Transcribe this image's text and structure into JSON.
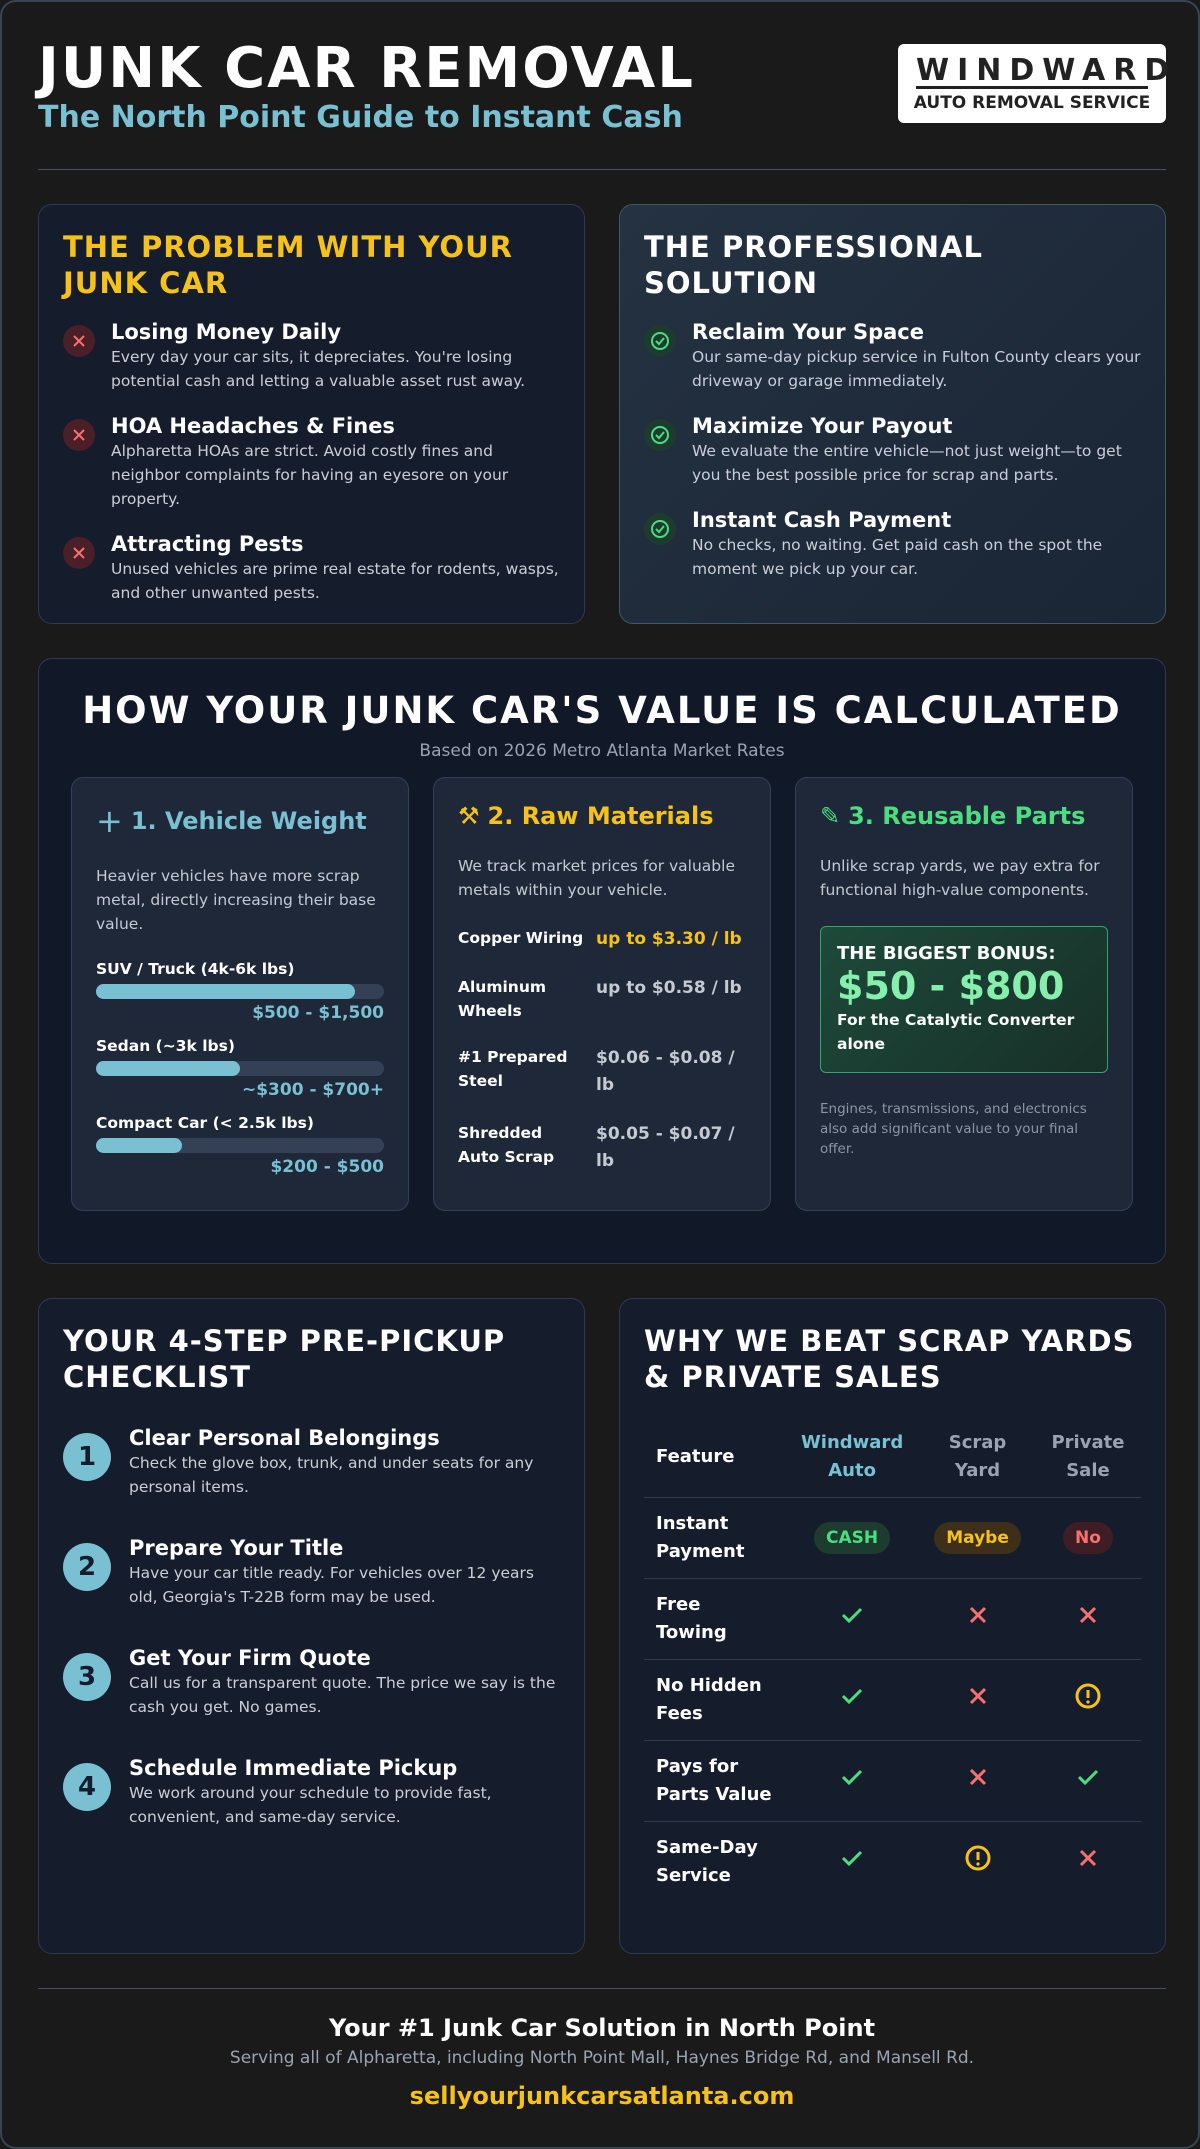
{
  "header": {
    "title": "JUNK CAR REMOVAL",
    "subtitle": "The North Point Guide to Instant Cash",
    "logo": {
      "name": "WINDWARD",
      "tagline": "AUTO REMOVAL SERVICE"
    }
  },
  "problem": {
    "title": "THE PROBLEM WITH YOUR JUNK CAR",
    "items": [
      {
        "title": "Losing Money Daily",
        "text": "Every day your car sits, it depreciates. You're losing potential cash and letting a valuable asset rust away."
      },
      {
        "title": "HOA Headaches & Fines",
        "text": "Alpharetta HOAs are strict. Avoid costly fines and neighbor complaints for having an eyesore on your property."
      },
      {
        "title": "Attracting Pests",
        "text": "Unused vehicles are prime real estate for rodents, wasps, and other unwanted pests."
      }
    ]
  },
  "solution": {
    "title": "THE PROFESSIONAL SOLUTION",
    "items": [
      {
        "title": "Reclaim Your Space",
        "text": "Our same-day pickup service in Fulton County clears your driveway or garage immediately."
      },
      {
        "title": "Maximize Your Payout",
        "text": "We evaluate the entire vehicle—not just weight—to get you the best possible price for scrap and parts."
      },
      {
        "title": "Instant Cash Payment",
        "text": "No checks, no waiting. Get paid cash on the spot the moment we pick up your car."
      }
    ]
  },
  "value": {
    "title": "HOW YOUR JUNK CAR'S VALUE IS CALCULATED",
    "subtitle": "Based on 2026 Metro Atlanta Market Rates",
    "weight": {
      "title": "1. Vehicle Weight",
      "text": "Heavier vehicles have more scrap metal, directly increasing their base value.",
      "tiers": [
        {
          "label": "SUV / Truck (4k-6k lbs)",
          "price": "$500 - $1,500"
        },
        {
          "label": "Sedan (~3k lbs)",
          "price": "~$300 - $700+"
        },
        {
          "label": "Compact Car (< 2.5k lbs)",
          "price": "$200 - $500"
        }
      ]
    },
    "materials": {
      "title": "2. Raw Materials",
      "text": "We track market prices for valuable metals within your vehicle.",
      "items": [
        {
          "name": "Copper Wiring",
          "price": "up to $3.30 / lb"
        },
        {
          "name": "Aluminum Wheels",
          "price": "up to $0.58 / lb"
        },
        {
          "name": "#1 Prepared Steel",
          "price": "$0.06 - $0.08 / lb"
        },
        {
          "name": "Shredded Auto Scrap",
          "price": "$0.05 - $0.07 / lb"
        }
      ]
    },
    "parts": {
      "title": "3. Reusable Parts",
      "text": "Unlike scrap yards, we pay extra for functional high-value components.",
      "bonus": {
        "label": "THE BIGGEST BONUS:",
        "amount": "$50 - $800",
        "note": "For the Catalytic Converter alone"
      },
      "footnote": "Engines, transmissions, and electronics also add significant value to your final offer."
    }
  },
  "checklist": {
    "title": "YOUR 4-STEP PRE-PICKUP CHECKLIST",
    "steps": [
      {
        "number": 1,
        "title": "Clear Personal Belongings",
        "text": "Check the glove box, trunk, and under seats for any personal items."
      },
      {
        "number": 2,
        "title": "Prepare Your Title",
        "text": "Have your car title ready. For vehicles over 12 years old, Georgia's T-22B form may be used."
      },
      {
        "number": 3,
        "title": "Get Your Firm Quote",
        "text": "Call us for a transparent quote. The price we say is the cash you get. No games."
      },
      {
        "number": 4,
        "title": "Schedule Immediate Pickup",
        "text": "We work around your schedule to provide fast, convenient, and same-day service."
      }
    ]
  },
  "comparison": {
    "title": "WHY WE BEAT SCRAP YARDS & PRIVATE SALES",
    "columns": [
      "Feature",
      "Windward Auto",
      "Scrap Yard",
      "Private Sale"
    ],
    "rows": [
      {
        "feature": "Instant Payment",
        "badges": [
          "CASH",
          "Maybe",
          "No"
        ]
      },
      {
        "feature": "Free Towing"
      },
      {
        "feature": "No Hidden Fees"
      },
      {
        "feature": "Pays for Parts Value"
      },
      {
        "feature": "Same-Day Service"
      }
    ]
  },
  "footer": {
    "heading": "Your #1 Junk Car Solution in North Point",
    "text": "Serving all of Alpharetta, including North Point Mall, Haynes Bridge Rd, and Mansell Rd.",
    "url": "sellyourjunkcarsatlanta.com"
  }
}
